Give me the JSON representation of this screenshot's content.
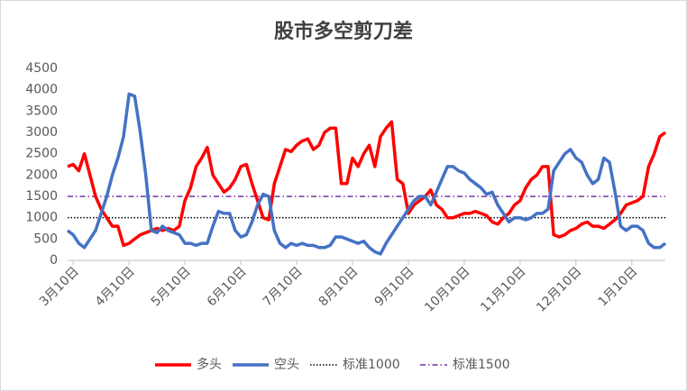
{
  "chart_data": {
    "type": "line",
    "title": "股市多空剪刀差",
    "categories": [
      null,
      "3月10日",
      null,
      null,
      null,
      null,
      null,
      null,
      null,
      null,
      null,
      "4月10日",
      null,
      null,
      null,
      null,
      null,
      null,
      null,
      null,
      null,
      "5月10日",
      null,
      null,
      null,
      null,
      null,
      null,
      null,
      null,
      null,
      "6月10日",
      null,
      null,
      null,
      null,
      null,
      null,
      null,
      null,
      null,
      "7月10日",
      null,
      null,
      null,
      null,
      null,
      null,
      null,
      null,
      null,
      "8月10日",
      null,
      null,
      null,
      null,
      null,
      null,
      null,
      null,
      null,
      "9月10日",
      null,
      null,
      null,
      null,
      null,
      null,
      null,
      null,
      null,
      "10月10日",
      null,
      null,
      null,
      null,
      null,
      null,
      null,
      null,
      null,
      "11月10日",
      null,
      null,
      null,
      null,
      null,
      null,
      null,
      null,
      null,
      "12月10日",
      null,
      null,
      null,
      null,
      null,
      null,
      null,
      null,
      null,
      "1月10日",
      null,
      null,
      null,
      null,
      null,
      null
    ],
    "series": [
      {
        "name": "多头",
        "color": "#ff0000",
        "values": [
          2200,
          2250,
          2100,
          2500,
          2000,
          1500,
          1200,
          1000,
          800,
          800,
          350,
          400,
          500,
          600,
          650,
          700,
          750,
          700,
          750,
          700,
          800,
          1400,
          1700,
          2200,
          2400,
          2650,
          2000,
          1800,
          1600,
          1700,
          1900,
          2200,
          2250,
          1800,
          1400,
          1000,
          950,
          1800,
          2200,
          2600,
          2550,
          2700,
          2800,
          2850,
          2600,
          2700,
          3000,
          3100,
          3100,
          1800,
          1800,
          2400,
          2200,
          2500,
          2700,
          2200,
          2900,
          3100,
          3250,
          1900,
          1800,
          1100,
          1300,
          1400,
          1500,
          1650,
          1300,
          1200,
          1000,
          1000,
          1050,
          1100,
          1100,
          1150,
          1100,
          1050,
          900,
          850,
          1000,
          1100,
          1300,
          1400,
          1700,
          1900,
          2000,
          2200,
          2200,
          600,
          550,
          600,
          700,
          750,
          850,
          900,
          800,
          800,
          750,
          850,
          950,
          1100,
          1300,
          1350,
          1400,
          1500,
          2200,
          2500,
          2900,
          3000
        ]
      },
      {
        "name": "空头",
        "color": "#4472c4",
        "values": [
          700,
          600,
          400,
          300,
          500,
          700,
          1100,
          1500,
          2000,
          2400,
          2900,
          3900,
          3850,
          3000,
          2000,
          700,
          650,
          800,
          700,
          650,
          600,
          400,
          400,
          350,
          400,
          400,
          800,
          1150,
          1100,
          1100,
          700,
          550,
          600,
          900,
          1300,
          1550,
          1500,
          700,
          400,
          300,
          400,
          350,
          400,
          350,
          350,
          300,
          300,
          350,
          550,
          550,
          500,
          450,
          400,
          450,
          300,
          200,
          150,
          400,
          600,
          800,
          1000,
          1200,
          1400,
          1500,
          1500,
          1300,
          1600,
          1900,
          2200,
          2200,
          2100,
          2050,
          1900,
          1800,
          1700,
          1550,
          1600,
          1300,
          1100,
          900,
          1000,
          1000,
          950,
          1000,
          1100,
          1100,
          1200,
          2100,
          2300,
          2500,
          2600,
          2400,
          2300,
          2000,
          1800,
          1900,
          2400,
          2300,
          1600,
          800,
          700,
          800,
          800,
          700,
          400,
          300,
          300,
          400
        ]
      }
    ],
    "reference_lines": [
      {
        "name": "标准1000",
        "value": 1000,
        "color": "#000000",
        "style": "dotted"
      },
      {
        "name": "标准1500",
        "value": 1500,
        "color": "#7030a0",
        "style": "dashdot"
      }
    ],
    "ylim": [
      0,
      4500
    ],
    "yticks": [
      0,
      500,
      1000,
      1500,
      2000,
      2500,
      3000,
      3500,
      4000,
      4500
    ],
    "grid": false,
    "legend": "bottom"
  }
}
